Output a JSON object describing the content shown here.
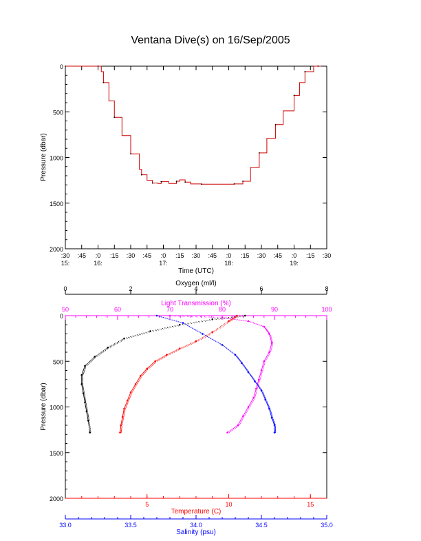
{
  "title": "Ventana Dive(s) on 16/Sep/2005",
  "colors": {
    "axis": "#000000",
    "dive_trace": "#cc0000",
    "light_transmission": "#ff00ff",
    "temperature": "#ff0000",
    "salinity": "#0000ff",
    "oxygen": "#000000"
  },
  "chart_data": [
    {
      "type": "line",
      "title": "Ventana Dive(s) on 16/Sep/2005",
      "xlabel": "Time (UTC)",
      "ylabel": "Pressure (dbar)",
      "ylim": [
        2000,
        0
      ],
      "xlim_minutes_from_1530": [
        0,
        240
      ],
      "x_tick_labels": [
        ":30",
        ":45",
        ":0",
        ":15",
        ":30",
        ":45",
        ":0",
        ":15",
        ":30",
        ":45",
        ":0",
        ":15",
        ":30",
        ":45",
        ":0",
        ":15",
        ":30"
      ],
      "hour_labels": [
        {
          "label": "15:",
          "at_tick": 0
        },
        {
          "label": "16:",
          "at_tick": 2
        },
        {
          "label": "17:",
          "at_tick": 6
        },
        {
          "label": "18:",
          "at_tick": 10
        },
        {
          "label": "19:",
          "at_tick": 14
        }
      ],
      "y_tick_labels": [
        "0",
        "500",
        "1000",
        "1500",
        "2000"
      ],
      "series": [
        {
          "color": "#cc0000",
          "x": [
            0,
            15,
            30,
            33,
            35,
            40,
            45,
            52,
            60,
            68,
            70,
            75,
            80,
            85,
            88,
            95,
            102,
            105,
            110,
            115,
            125,
            140,
            155,
            160,
            163,
            170,
            178,
            185,
            193,
            200,
            210,
            215,
            220,
            228,
            232,
            235
          ],
          "y": [
            0,
            0,
            0,
            60,
            180,
            380,
            560,
            760,
            960,
            1130,
            1190,
            1250,
            1280,
            1285,
            1265,
            1285,
            1260,
            1245,
            1270,
            1290,
            1292,
            1292,
            1290,
            1290,
            1260,
            1110,
            950,
            790,
            640,
            490,
            320,
            180,
            60,
            0,
            0,
            0
          ]
        }
      ]
    },
    {
      "type": "scatter",
      "ylabel": "Pressure (dbar)",
      "ylim": [
        2000,
        0
      ],
      "y_tick_labels": [
        "0",
        "500",
        "1000",
        "1500",
        "2000"
      ],
      "axes": {
        "oxygen": {
          "label": "Oxygen (ml/l)",
          "range": [
            0,
            8
          ],
          "ticks": [
            "0",
            "2",
            "4",
            "6",
            "8"
          ]
        },
        "light_transmission": {
          "label": "Light Transmission (%)",
          "range": [
            50,
            100
          ],
          "ticks": [
            "50",
            "60",
            "70",
            "80",
            "90",
            "100"
          ]
        },
        "temperature": {
          "label": "Temperature (C)",
          "range": [
            0,
            16
          ],
          "ticks": [
            "5",
            "10",
            "15"
          ]
        },
        "salinity": {
          "label": "Salinity (psu)",
          "range": [
            33.0,
            35.0
          ],
          "ticks": [
            "33.0",
            "33.5",
            "34.0",
            "34.5",
            "35.0"
          ]
        }
      },
      "series": [
        {
          "name": "Oxygen (ml/l)",
          "color": "#000000",
          "x": [
            5.5,
            4.5,
            3.5,
            2.6,
            1.8,
            1.3,
            0.9,
            0.6,
            0.5,
            0.5,
            0.55,
            0.6,
            0.65,
            0.7,
            0.75
          ],
          "y": [
            0,
            40,
            100,
            170,
            250,
            350,
            450,
            550,
            650,
            750,
            850,
            950,
            1050,
            1150,
            1280
          ]
        },
        {
          "name": "Light Transmission (%)",
          "color": "#ff00ff",
          "x": [
            70,
            80,
            85,
            88,
            89,
            89.5,
            89,
            88,
            87.5,
            87,
            86.5,
            86,
            85,
            84,
            83,
            81
          ],
          "y": [
            0,
            20,
            60,
            120,
            200,
            300,
            400,
            500,
            600,
            700,
            800,
            900,
            1000,
            1100,
            1200,
            1280
          ]
        },
        {
          "name": "Temperature (C)",
          "color": "#ff0000",
          "x": [
            10.5,
            10.0,
            9.0,
            8.0,
            7.0,
            6.2,
            5.5,
            5.0,
            4.6,
            4.3,
            4.0,
            3.8,
            3.6,
            3.5,
            3.4,
            3.35
          ],
          "y": [
            0,
            60,
            180,
            280,
            360,
            430,
            500,
            580,
            660,
            750,
            840,
            930,
            1020,
            1110,
            1200,
            1280
          ]
        },
        {
          "name": "Salinity (psu)",
          "color": "#0000ff",
          "x": [
            33.7,
            33.9,
            34.05,
            34.2,
            34.3,
            34.35,
            34.4,
            34.45,
            34.5,
            34.53,
            34.56,
            34.58,
            34.6,
            34.6
          ],
          "y": [
            0,
            80,
            200,
            320,
            430,
            520,
            620,
            720,
            820,
            920,
            1020,
            1120,
            1200,
            1280
          ]
        }
      ]
    }
  ]
}
